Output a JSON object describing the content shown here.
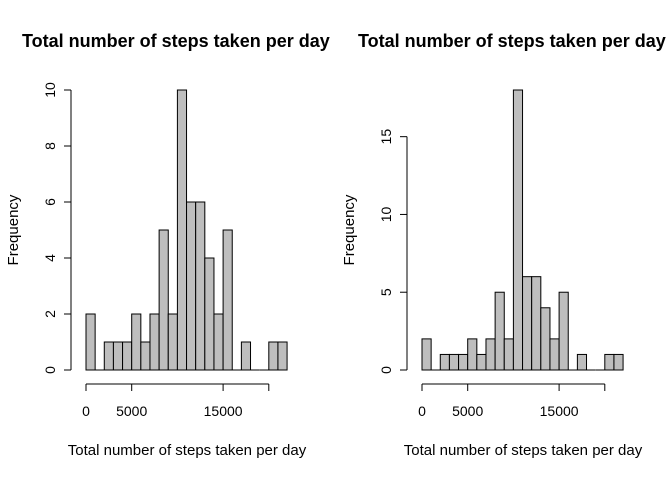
{
  "chart_data": [
    {
      "type": "bar",
      "title": "Total number of steps taken per day",
      "xlabel": "Total number of steps taken per day",
      "ylabel": "Frequency",
      "bin_width": 1000,
      "bin_start": 0,
      "counts": [
        2,
        0,
        1,
        1,
        1,
        2,
        1,
        2,
        5,
        2,
        10,
        6,
        6,
        4,
        2,
        5,
        0,
        1,
        0,
        0,
        1,
        1
      ],
      "xticks": [
        0,
        5000,
        15000
      ],
      "xtick_labels": [
        "0",
        "5000",
        "15000"
      ],
      "xaxis_range": [
        0,
        20000
      ],
      "yticks": [
        0,
        2,
        4,
        6,
        8,
        10
      ],
      "ytick_labels": [
        "0",
        "2",
        "4",
        "6",
        "8",
        "10"
      ],
      "ylim": [
        0,
        10
      ],
      "bar_color": "#bebebe"
    },
    {
      "type": "bar",
      "title": "Total number of steps taken per day",
      "xlabel": "Total number of steps taken per day",
      "ylabel": "Frequency",
      "bin_width": 1000,
      "bin_start": 0,
      "counts": [
        2,
        0,
        1,
        1,
        1,
        2,
        1,
        2,
        5,
        2,
        18,
        6,
        6,
        4,
        2,
        5,
        0,
        1,
        0,
        0,
        1,
        1
      ],
      "xticks": [
        0,
        5000,
        15000
      ],
      "xtick_labels": [
        "0",
        "5000",
        "15000"
      ],
      "xaxis_range": [
        0,
        20000
      ],
      "yticks": [
        0,
        5,
        10,
        15
      ],
      "ytick_labels": [
        "0",
        "5",
        "10",
        "15"
      ],
      "ylim": [
        0,
        18
      ],
      "bar_color": "#bebebe"
    }
  ]
}
